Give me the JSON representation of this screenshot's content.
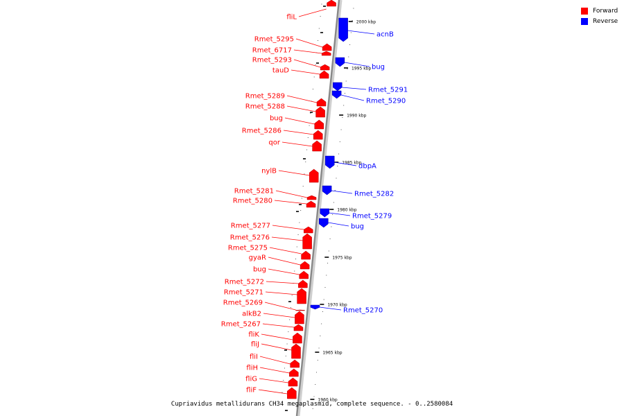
{
  "colors": {
    "forward": "#ff0000",
    "reverse": "#0000ff",
    "axis": "#888888",
    "tick": "#000000"
  },
  "legend": {
    "forward": "Forward",
    "reverse": "Reverse"
  },
  "caption": "Cupriavidus metallidurans CH34 megaplasmid, complete sequence. - 0..2580084",
  "axis": {
    "top_kbp": 2003.5,
    "bottom_kbp": 1959.0
  },
  "scale_labels": [
    "2000 kbp",
    "1995 kbp",
    "1990 kbp",
    "1985 kbp",
    "1980 kbp",
    "1975 kbp",
    "1970 kbp",
    "1965 kbp",
    "1960 kbp"
  ],
  "forward_genes": [
    "fliL",
    "Rmet_5295",
    "Rmet_6717",
    "Rmet_5293",
    "tauD",
    "Rmet_5289",
    "Rmet_5288",
    "bug",
    "Rmet_5286",
    "qor",
    "nylB",
    "Rmet_5281",
    "Rmet_5280",
    "Rmet_5277",
    "Rmet_5276",
    "Rmet_5275",
    "gyaR",
    "bug",
    "Rmet_5272",
    "Rmet_5271",
    "Rmet_5269",
    "alkB2",
    "Rmet_5267",
    "fliK",
    "fliJ",
    "fliI",
    "fliH",
    "fliG",
    "fliF"
  ],
  "reverse_genes": [
    "acnB",
    "bug",
    "Rmet_5291",
    "Rmet_5290",
    "dbpA",
    "Rmet_5282",
    "Rmet_5279",
    "bug",
    "Rmet_5270"
  ]
}
